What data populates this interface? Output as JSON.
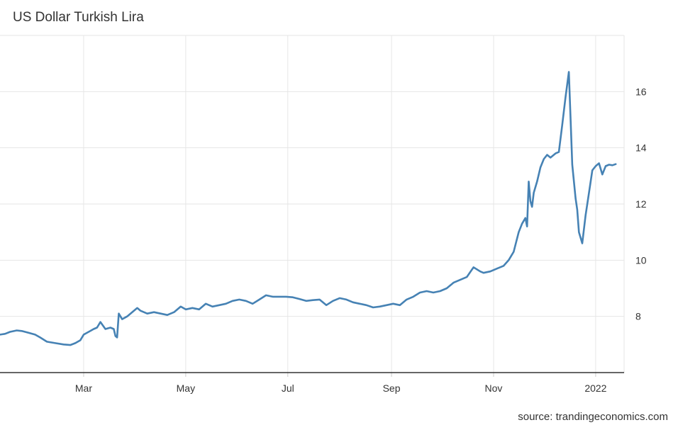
{
  "chart_data": {
    "type": "line",
    "title": "US Dollar Turkish Lira",
    "source": "source: trandingeconomics.com",
    "xlabel": "",
    "ylabel": "",
    "x_ticks": [
      "Mar",
      "May",
      "Jul",
      "Sep",
      "Nov",
      "2022"
    ],
    "y_ticks": [
      8,
      10,
      12,
      14,
      16
    ],
    "xlim": [
      "2021-01-10",
      "2022-01-18"
    ],
    "ylim": [
      6.0,
      18.0
    ],
    "grid": true,
    "legend": "none",
    "line_color": "#4682b4",
    "series": [
      {
        "x": [
          "2021-01-10",
          "2021-01-13",
          "2021-01-16",
          "2021-01-20",
          "2021-01-23",
          "2021-01-27",
          "2021-01-31",
          "2021-02-03",
          "2021-02-07",
          "2021-02-12",
          "2021-02-17",
          "2021-02-21",
          "2021-02-24",
          "2021-02-27",
          "2021-03-01",
          "2021-03-04",
          "2021-03-07",
          "2021-03-09",
          "2021-03-11",
          "2021-03-14",
          "2021-03-17",
          "2021-03-19",
          "2021-03-20",
          "2021-03-21",
          "2021-03-22",
          "2021-03-24",
          "2021-03-27",
          "2021-03-30",
          "2021-04-02",
          "2021-04-04",
          "2021-04-08",
          "2021-04-12",
          "2021-04-16",
          "2021-04-20",
          "2021-04-24",
          "2021-04-28",
          "2021-05-01",
          "2021-05-05",
          "2021-05-09",
          "2021-05-13",
          "2021-05-17",
          "2021-05-21",
          "2021-05-25",
          "2021-05-29",
          "2021-06-02",
          "2021-06-06",
          "2021-06-10",
          "2021-06-14",
          "2021-06-18",
          "2021-06-22",
          "2021-06-26",
          "2021-06-30",
          "2021-07-04",
          "2021-07-08",
          "2021-07-12",
          "2021-07-16",
          "2021-07-20",
          "2021-07-24",
          "2021-07-28",
          "2021-08-01",
          "2021-08-05",
          "2021-08-09",
          "2021-08-13",
          "2021-08-17",
          "2021-08-21",
          "2021-08-25",
          "2021-08-29",
          "2021-09-02",
          "2021-09-06",
          "2021-09-10",
          "2021-09-14",
          "2021-09-18",
          "2021-09-22",
          "2021-09-26",
          "2021-09-30",
          "2021-10-04",
          "2021-10-08",
          "2021-10-12",
          "2021-10-16",
          "2021-10-20",
          "2021-10-24",
          "2021-10-26",
          "2021-10-30",
          "2021-11-03",
          "2021-11-07",
          "2021-11-10",
          "2021-11-13",
          "2021-11-16",
          "2021-11-18",
          "2021-11-20",
          "2021-11-21",
          "2021-11-22",
          "2021-11-23",
          "2021-11-24",
          "2021-11-25",
          "2021-11-27",
          "2021-11-29",
          "2021-12-01",
          "2021-12-03",
          "2021-12-05",
          "2021-12-08",
          "2021-12-10",
          "2021-12-12",
          "2021-12-14",
          "2021-12-16",
          "2021-12-18",
          "2021-12-20",
          "2021-12-21",
          "2021-12-22",
          "2021-12-24",
          "2021-12-26",
          "2021-12-28",
          "2021-12-30",
          "2022-01-01",
          "2022-01-03",
          "2022-01-05",
          "2022-01-07",
          "2022-01-09",
          "2022-01-11",
          "2022-01-13"
        ],
        "y": [
          7.35,
          7.38,
          7.45,
          7.5,
          7.48,
          7.42,
          7.35,
          7.25,
          7.1,
          7.05,
          7.0,
          6.98,
          7.05,
          7.15,
          7.35,
          7.45,
          7.55,
          7.6,
          7.8,
          7.55,
          7.6,
          7.55,
          7.3,
          7.25,
          8.1,
          7.9,
          8.0,
          8.15,
          8.3,
          8.2,
          8.1,
          8.15,
          8.1,
          8.05,
          8.15,
          8.35,
          8.25,
          8.3,
          8.25,
          8.45,
          8.35,
          8.4,
          8.45,
          8.55,
          8.6,
          8.55,
          8.45,
          8.6,
          8.75,
          8.7,
          8.7,
          8.7,
          8.68,
          8.62,
          8.55,
          8.58,
          8.6,
          8.4,
          8.55,
          8.65,
          8.6,
          8.5,
          8.45,
          8.4,
          8.32,
          8.35,
          8.4,
          8.45,
          8.4,
          8.6,
          8.7,
          8.85,
          8.9,
          8.85,
          8.9,
          9.0,
          9.2,
          9.3,
          9.4,
          9.75,
          9.6,
          9.55,
          9.6,
          9.7,
          9.8,
          10.0,
          10.3,
          11.0,
          11.3,
          11.5,
          11.2,
          12.8,
          12.1,
          11.9,
          12.4,
          12.8,
          13.3,
          13.6,
          13.75,
          13.65,
          13.8,
          13.85,
          14.8,
          15.8,
          16.7,
          13.4,
          12.2,
          11.8,
          11.0,
          10.6,
          11.6,
          12.4,
          13.2,
          13.35,
          13.45,
          13.05,
          13.35,
          13.4,
          13.38,
          13.42
        ]
      }
    ]
  }
}
